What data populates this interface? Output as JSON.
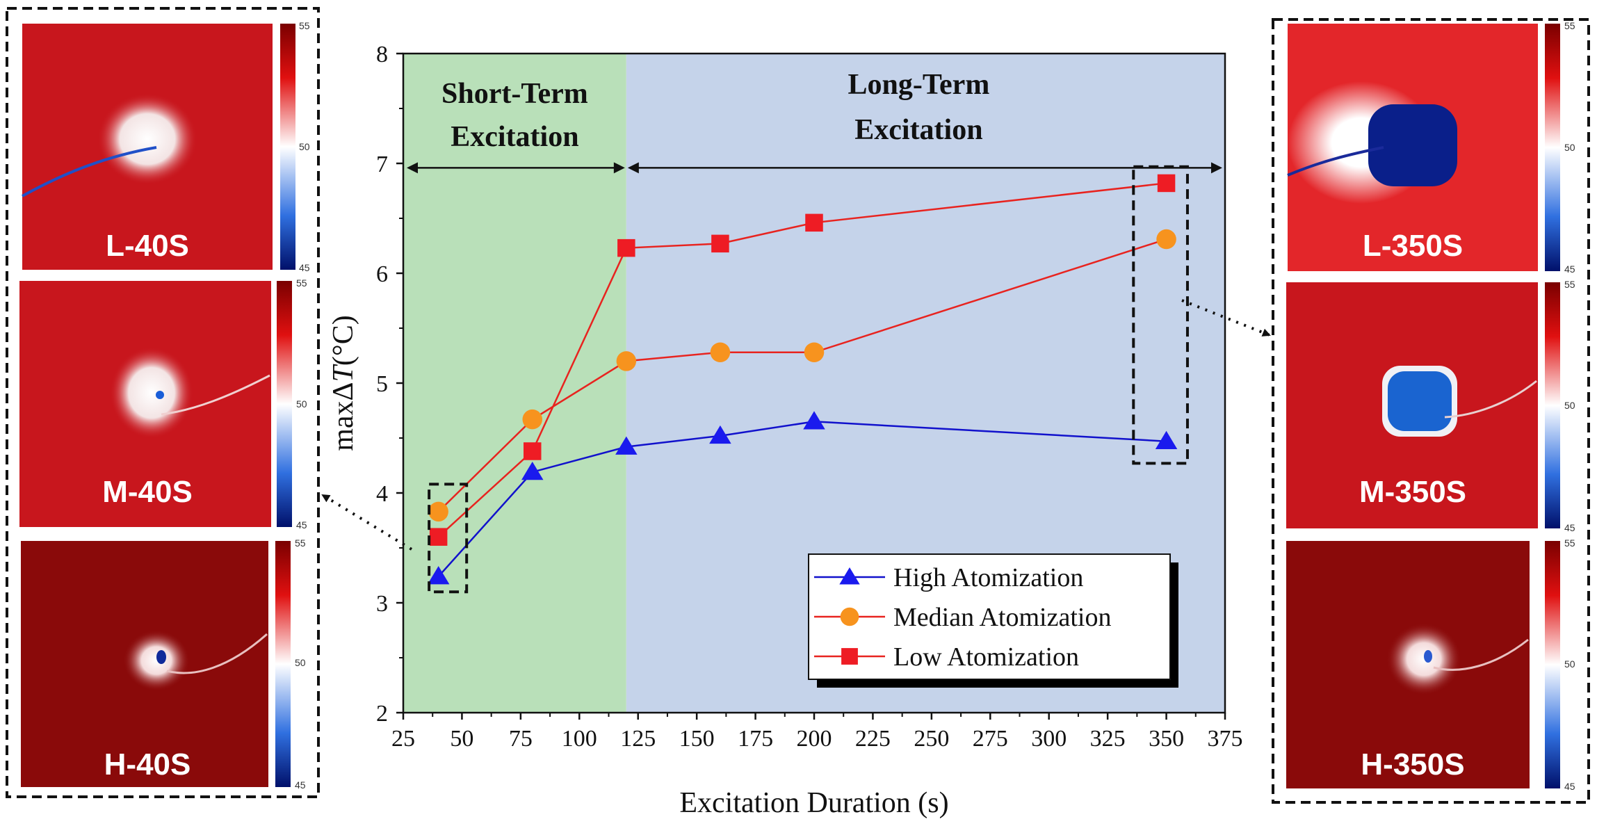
{
  "chart_data": {
    "type": "line",
    "xlabel": "Excitation Duration (s)",
    "ylabel_prefix": "max",
    "ylabel_delta": "Δ",
    "ylabel_var": "T",
    "ylabel_unit": "(°C)",
    "xlim": [
      25,
      375
    ],
    "ylim": [
      2,
      8
    ],
    "xticks": [
      "25",
      "50",
      "75",
      "100",
      "125",
      "150",
      "175",
      "200",
      "225",
      "250",
      "275",
      "300",
      "325",
      "350",
      "375"
    ],
    "yticks": [
      "2",
      "3",
      "4",
      "5",
      "6",
      "7",
      "8"
    ],
    "regions": [
      {
        "name": "short-term",
        "line1": "Short-Term",
        "line2": "Excitation",
        "x_from": 25,
        "x_to": 120,
        "color": "#b9e0b9"
      },
      {
        "name": "long-term",
        "line1": "Long-Term",
        "line2": "Excitation",
        "x_from": 120,
        "x_to": 375,
        "color": "#c5d3ea"
      }
    ],
    "arrow_level": 6.96,
    "series": [
      {
        "name": "High Atomization",
        "color": "#1111cc",
        "marker": "triangle",
        "marker_color": "#1a1aee",
        "x": [
          40,
          80,
          120,
          160,
          200,
          350
        ],
        "values": [
          3.24,
          4.19,
          4.42,
          4.52,
          4.65,
          4.47
        ]
      },
      {
        "name": "Median Atomization",
        "color": "#e8231f",
        "marker": "circle",
        "marker_color": "#f7931e",
        "x": [
          40,
          80,
          120,
          160,
          200,
          350
        ],
        "values": [
          3.83,
          4.67,
          5.2,
          5.28,
          5.28,
          6.31
        ]
      },
      {
        "name": "Low Atomization",
        "color": "#e8231f",
        "marker": "square",
        "marker_color": "#ee1c24",
        "x": [
          40,
          80,
          120,
          160,
          200,
          350
        ],
        "values": [
          3.6,
          4.38,
          6.23,
          6.27,
          6.46,
          6.82
        ]
      }
    ],
    "highlight_boxes": [
      {
        "name": "box-40s",
        "x_from": 36,
        "x_to": 52,
        "y_from": 3.1,
        "y_to": 4.08
      },
      {
        "name": "box-350s",
        "x_from": 336,
        "x_to": 359,
        "y_from": 4.27,
        "y_to": 6.97
      }
    ],
    "legend_position": "bottom-right"
  },
  "thumbnails": {
    "left": [
      {
        "label": "L-40S",
        "cb_max": "55",
        "cb_mid": "50",
        "cb_min": "45"
      },
      {
        "label": "M-40S",
        "cb_max": "55",
        "cb_mid": "50",
        "cb_min": "45"
      },
      {
        "label": "H-40S",
        "cb_max": "55",
        "cb_mid": "50",
        "cb_min": "45"
      }
    ],
    "right": [
      {
        "label": "L-350S",
        "cb_max": "55",
        "cb_mid": "50",
        "cb_min": "45"
      },
      {
        "label": "M-350S",
        "cb_max": "55",
        "cb_mid": "50",
        "cb_min": "45"
      },
      {
        "label": "H-350S",
        "cb_max": "55",
        "cb_mid": "50",
        "cb_min": "45"
      }
    ]
  },
  "colors": {
    "thermal_red": "#c8161d",
    "thermal_dark": "#8a0a0a",
    "thermal_white": "#f7f2f2",
    "thermal_blue": "#0a2a9a"
  }
}
